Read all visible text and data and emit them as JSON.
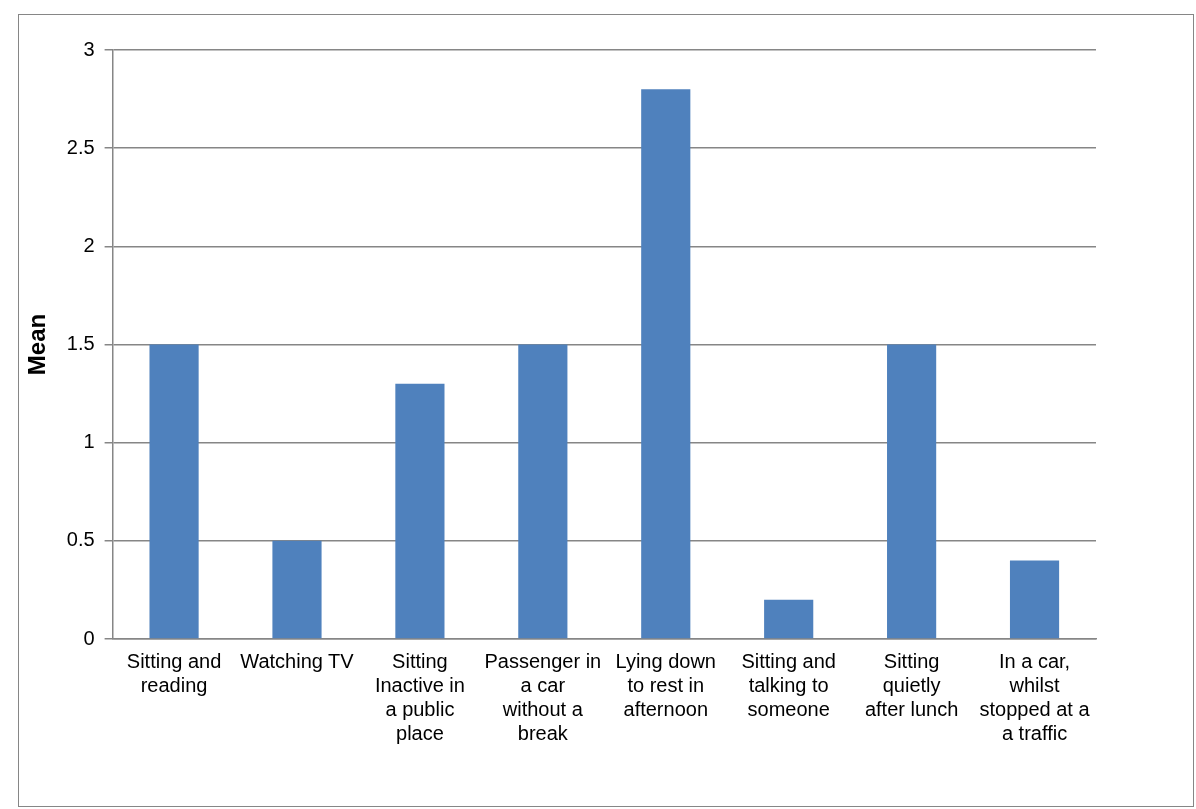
{
  "chart_data": {
    "type": "bar",
    "ylabel": "Mean",
    "categories": [
      "Sitting and reading",
      "Watching TV",
      "Sitting Inactive in a public place",
      "Passenger in a car without a break",
      "Lying down to rest in afternoon",
      "Sitting and talking to someone",
      "Sitting quietly after lunch",
      "In a car, whilst stopped at a a traffic"
    ],
    "values": [
      1.5,
      0.5,
      1.3,
      1.5,
      2.8,
      0.2,
      1.5,
      0.4
    ],
    "color": "#4f81bd",
    "ylim": [
      0,
      3
    ],
    "yticks": [
      0,
      0.5,
      1,
      1.5,
      2,
      2.5,
      3
    ],
    "grid": "y",
    "legend": false
  }
}
